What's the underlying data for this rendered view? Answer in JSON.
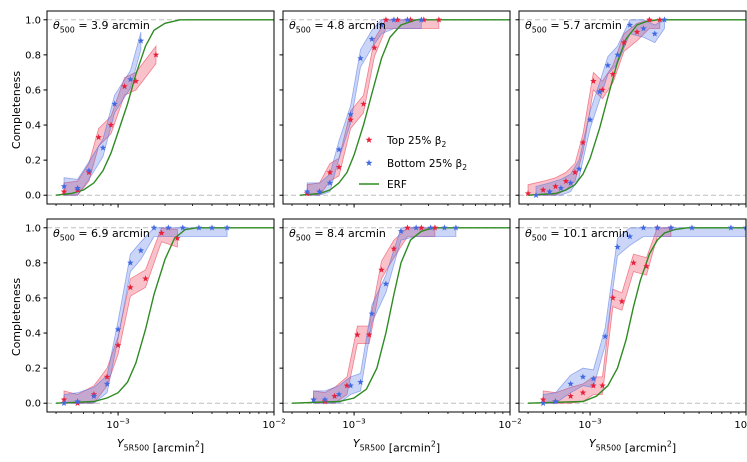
{
  "figure": {
    "ylabel": "Completeness",
    "xlabel_prefix": "Y",
    "xlabel_sub": "5R500",
    "xlabel_suffix": " [arcmin",
    "xlabel_sup": "2",
    "xlabel_end": "]",
    "legend": [
      {
        "label": "Top 25% β",
        "sub": "2",
        "color": "#e8223c",
        "marker": "star"
      },
      {
        "label": "Bottom 25% β",
        "sub": "2",
        "color": "#4169e1",
        "marker": "star"
      },
      {
        "label": "ERF",
        "sub": "",
        "color": "#2e8b22",
        "marker": "line"
      }
    ],
    "x_ticks": [
      {
        "base": "10",
        "exp": "−3",
        "value": 0.001
      },
      {
        "base": "10",
        "exp": "−2",
        "value": 0.01
      }
    ],
    "y_ticks": [
      "0.0",
      "0.2",
      "0.4",
      "0.6",
      "0.8",
      "1.0"
    ]
  },
  "chart_data": [
    {
      "type": "line",
      "title_prefix": "θ",
      "title_sub": "500",
      "title_value": " = 3.9 arcmin",
      "xscale": "log",
      "xlim": [
        0.00035,
        0.01
      ],
      "ylim": [
        -0.05,
        1.05
      ],
      "xlabel": "",
      "ylabel": "Completeness",
      "series": [
        {
          "name": "Top 25% β2",
          "x": [
            0.00045,
            0.00055,
            0.00065,
            0.00075,
            0.0009,
            0.0011,
            0.0013,
            0.00175
          ],
          "y": [
            0.02,
            0.03,
            0.13,
            0.33,
            0.4,
            0.62,
            0.65,
            0.8
          ]
        },
        {
          "name": "Bottom 25% β2",
          "x": [
            0.00045,
            0.00055,
            0.00065,
            0.0008,
            0.00095,
            0.0012,
            0.0014
          ],
          "y": [
            0.05,
            0.04,
            0.14,
            0.27,
            0.52,
            0.66,
            0.88
          ]
        },
        {
          "name": "ERF",
          "x": [
            0.0004,
            0.0005,
            0.0006,
            0.0007,
            0.0008,
            0.0009,
            0.001,
            0.00115,
            0.0013,
            0.0015,
            0.0017,
            0.002,
            0.0025,
            0.003,
            0.01
          ],
          "y": [
            0.0,
            0.01,
            0.03,
            0.07,
            0.14,
            0.24,
            0.36,
            0.52,
            0.69,
            0.85,
            0.94,
            0.98,
            1.0,
            1.0,
            1.0
          ]
        }
      ]
    },
    {
      "type": "line",
      "title_prefix": "θ",
      "title_sub": "500",
      "title_value": " = 4.8 arcmin",
      "xscale": "log",
      "xlim": [
        0.00035,
        0.01
      ],
      "ylim": [
        -0.05,
        1.05
      ],
      "xlabel": "",
      "ylabel": "",
      "series": [
        {
          "name": "Top 25% β2",
          "x": [
            0.0005,
            0.0006,
            0.0007,
            0.0008,
            0.00095,
            0.00115,
            0.00135,
            0.0016,
            0.0019,
            0.0023,
            0.0028,
            0.0035
          ],
          "y": [
            0.01,
            0.02,
            0.13,
            0.16,
            0.43,
            0.52,
            0.84,
            1.0,
            1.0,
            1.0,
            1.0,
            1.0
          ]
        },
        {
          "name": "Bottom 25% β2",
          "x": [
            0.0005,
            0.0006,
            0.0007,
            0.0008,
            0.00095,
            0.0011,
            0.0013,
            0.0015,
            0.0018,
            0.0022,
            0.0027
          ],
          "y": [
            0.02,
            0.02,
            0.07,
            0.26,
            0.46,
            0.78,
            0.89,
            0.97,
            1.0,
            1.0,
            1.0
          ]
        },
        {
          "name": "ERF",
          "x": [
            0.00045,
            0.0006,
            0.0007,
            0.0008,
            0.0009,
            0.001,
            0.00115,
            0.0013,
            0.0015,
            0.0017,
            0.002,
            0.0025,
            0.003,
            0.01
          ],
          "y": [
            0.0,
            0.01,
            0.03,
            0.07,
            0.13,
            0.23,
            0.4,
            0.58,
            0.78,
            0.9,
            0.97,
            1.0,
            1.0,
            1.0
          ]
        }
      ]
    },
    {
      "type": "line",
      "title_prefix": "θ",
      "title_sub": "500",
      "title_value": " = 5.7 arcmin",
      "xscale": "log",
      "xlim": [
        0.00035,
        0.01
      ],
      "ylim": [
        -0.05,
        1.05
      ],
      "xlabel": "",
      "ylabel": "",
      "series": [
        {
          "name": "Top 25% β2",
          "x": [
            0.0004,
            0.0005,
            0.0006,
            0.0007,
            0.0008,
            0.0009,
            0.00105,
            0.0012,
            0.0014,
            0.00165,
            0.002,
            0.0024,
            0.0028
          ],
          "y": [
            0.01,
            0.03,
            0.05,
            0.08,
            0.13,
            0.3,
            0.65,
            0.6,
            0.69,
            0.87,
            0.93,
            1.0,
            1.0
          ]
        },
        {
          "name": "Bottom 25% β2",
          "x": [
            0.00045,
            0.00055,
            0.00065,
            0.00075,
            0.00085,
            0.001,
            0.00115,
            0.0013,
            0.0015,
            0.0018,
            0.0022,
            0.0026,
            0.003
          ],
          "y": [
            0.0,
            0.02,
            0.04,
            0.07,
            0.15,
            0.43,
            0.59,
            0.74,
            0.8,
            0.97,
            0.95,
            0.92,
            1.0
          ]
        },
        {
          "name": "ERF",
          "x": [
            0.0004,
            0.0006,
            0.0007,
            0.0008,
            0.0009,
            0.001,
            0.00115,
            0.0013,
            0.0015,
            0.0017,
            0.002,
            0.0023,
            0.0027,
            0.01
          ],
          "y": [
            0.0,
            0.01,
            0.03,
            0.06,
            0.12,
            0.21,
            0.38,
            0.56,
            0.76,
            0.89,
            0.97,
            0.99,
            1.0,
            1.0
          ]
        }
      ]
    },
    {
      "type": "line",
      "title_prefix": "θ",
      "title_sub": "500",
      "title_value": " = 6.9 arcmin",
      "xscale": "log",
      "xlim": [
        0.00035,
        0.01
      ],
      "ylim": [
        -0.05,
        1.05
      ],
      "xlabel": "Y5R500 [arcmin2]",
      "ylabel": "Completeness",
      "series": [
        {
          "name": "Top 25% β2",
          "x": [
            0.00045,
            0.00055,
            0.0007,
            0.00085,
            0.001,
            0.0012,
            0.0015,
            0.0019,
            0.0024
          ],
          "y": [
            0.02,
            0.0,
            0.05,
            0.15,
            0.33,
            0.66,
            0.71,
            0.97,
            0.94
          ]
        },
        {
          "name": "Bottom 25% β2",
          "x": [
            0.00045,
            0.00055,
            0.0007,
            0.00085,
            0.001,
            0.0012,
            0.0014,
            0.0017,
            0.0021,
            0.0026,
            0.0033,
            0.004,
            0.005
          ],
          "y": [
            0.0,
            0.01,
            0.04,
            0.11,
            0.42,
            0.8,
            0.87,
            1.0,
            1.0,
            1.0,
            1.0,
            1.0,
            1.0
          ]
        },
        {
          "name": "ERF",
          "x": [
            0.0004,
            0.0007,
            0.00085,
            0.001,
            0.00115,
            0.0013,
            0.0015,
            0.0017,
            0.002,
            0.0023,
            0.0027,
            0.0032,
            0.01
          ],
          "y": [
            0.0,
            0.01,
            0.03,
            0.06,
            0.12,
            0.23,
            0.42,
            0.62,
            0.82,
            0.94,
            0.99,
            1.0,
            1.0
          ]
        }
      ]
    },
    {
      "type": "line",
      "title_prefix": "θ",
      "title_sub": "500",
      "title_value": " = 8.4 arcmin",
      "xscale": "log",
      "xlim": [
        0.00035,
        0.01
      ],
      "ylim": [
        -0.05,
        1.05
      ],
      "xlabel": "Y5R500 [arcmin2]",
      "ylabel": "",
      "series": [
        {
          "name": "Top 25% β2",
          "x": [
            0.00055,
            0.00065,
            0.00075,
            0.0009,
            0.00105,
            0.00125,
            0.0015,
            0.0018,
            0.0022,
            0.0027,
            0.0033
          ],
          "y": [
            0.02,
            0.01,
            0.04,
            0.1,
            0.39,
            0.39,
            0.76,
            0.88,
            1.0,
            1.0,
            1.0
          ]
        },
        {
          "name": "Bottom 25% β2",
          "x": [
            0.00055,
            0.00065,
            0.0008,
            0.00095,
            0.0011,
            0.0013,
            0.0016,
            0.002,
            0.0025,
            0.0031,
            0.0038,
            0.0045
          ],
          "y": [
            0.02,
            0.02,
            0.05,
            0.1,
            0.12,
            0.51,
            0.68,
            0.98,
            1.0,
            1.0,
            1.0,
            1.0
          ]
        },
        {
          "name": "ERF",
          "x": [
            0.0004,
            0.0008,
            0.001,
            0.0012,
            0.0014,
            0.0016,
            0.0018,
            0.002,
            0.0023,
            0.0027,
            0.0032,
            0.004,
            0.01
          ],
          "y": [
            0.0,
            0.01,
            0.03,
            0.08,
            0.2,
            0.4,
            0.62,
            0.8,
            0.93,
            0.98,
            1.0,
            1.0,
            1.0
          ]
        }
      ]
    },
    {
      "type": "line",
      "title_prefix": "θ",
      "title_sub": "500",
      "title_value": " = 10.1 arcmin",
      "xscale": "log",
      "xlim": [
        0.00035,
        0.01
      ],
      "ylim": [
        -0.05,
        1.05
      ],
      "xlabel": "Y5R500 [arcmin2]",
      "ylabel": "",
      "series": [
        {
          "name": "Top 25% β2",
          "x": [
            0.0005,
            0.0006,
            0.00075,
            0.0009,
            0.00105,
            0.0012,
            0.0014,
            0.0016,
            0.0019,
            0.0023,
            0.0027,
            0.0033
          ],
          "y": [
            0.02,
            0.01,
            0.04,
            0.06,
            0.1,
            0.1,
            0.6,
            0.58,
            0.8,
            0.78,
            1.0,
            1.0
          ]
        },
        {
          "name": "Bottom 25% β2",
          "x": [
            0.0005,
            0.0006,
            0.00075,
            0.0009,
            0.00105,
            0.00125,
            0.0015,
            0.0018,
            0.0022,
            0.0027,
            0.0033,
            0.0045,
            0.008,
            0.01
          ],
          "y": [
            0.0,
            0.01,
            0.11,
            0.15,
            0.14,
            0.38,
            0.89,
            0.95,
            1.0,
            1.0,
            1.0,
            1.0,
            1.0,
            1.0
          ]
        },
        {
          "name": "ERF",
          "x": [
            0.0004,
            0.0009,
            0.0011,
            0.0013,
            0.0015,
            0.0017,
            0.0019,
            0.0021,
            0.0024,
            0.0027,
            0.003,
            0.0035,
            0.0042,
            0.01
          ],
          "y": [
            0.0,
            0.01,
            0.04,
            0.1,
            0.2,
            0.36,
            0.55,
            0.7,
            0.85,
            0.93,
            0.97,
            0.99,
            1.0,
            1.0
          ]
        }
      ]
    }
  ]
}
